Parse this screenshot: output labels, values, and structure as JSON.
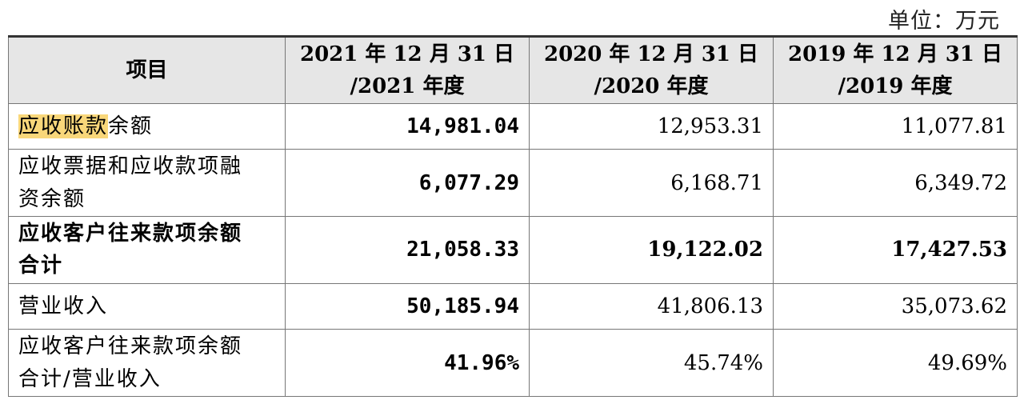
{
  "unit": "单位：万元",
  "header": {
    "col0": "项目",
    "col1_line1": "2021 年 12 月 31 日",
    "col1_line2": "/2021 年度",
    "col2_line1": "2020 年 12 月 31 日",
    "col2_line2": "/2020 年度",
    "col3_line1": "2019 年 12 月 31 日",
    "col3_line2": "/2019 年度"
  },
  "rows": [
    {
      "label_hl": "应收账款",
      "label_rest": "余额",
      "v2021": "14,981.04",
      "v2020": "12,953.31",
      "v2019": "11,077.81"
    },
    {
      "label_line1": "应收票据和应收款项融",
      "label_line2": "资余额",
      "v2021": "6,077.29",
      "v2020": "6,168.71",
      "v2019": "6,349.72"
    },
    {
      "label_line1": "应收客户往来款项余额",
      "label_line2": "合计",
      "v2021": "21,058.33",
      "v2020": "19,122.02",
      "v2019": "17,427.53"
    },
    {
      "label": "营业收入",
      "v2021": "50,185.94",
      "v2020": "41,806.13",
      "v2019": "35,073.62"
    },
    {
      "label_line1": "应收客户往来款项余额",
      "label_line2": "合计/营业收入",
      "v2021": "41.96%",
      "v2020": "45.74%",
      "v2019": "49.69%"
    }
  ]
}
